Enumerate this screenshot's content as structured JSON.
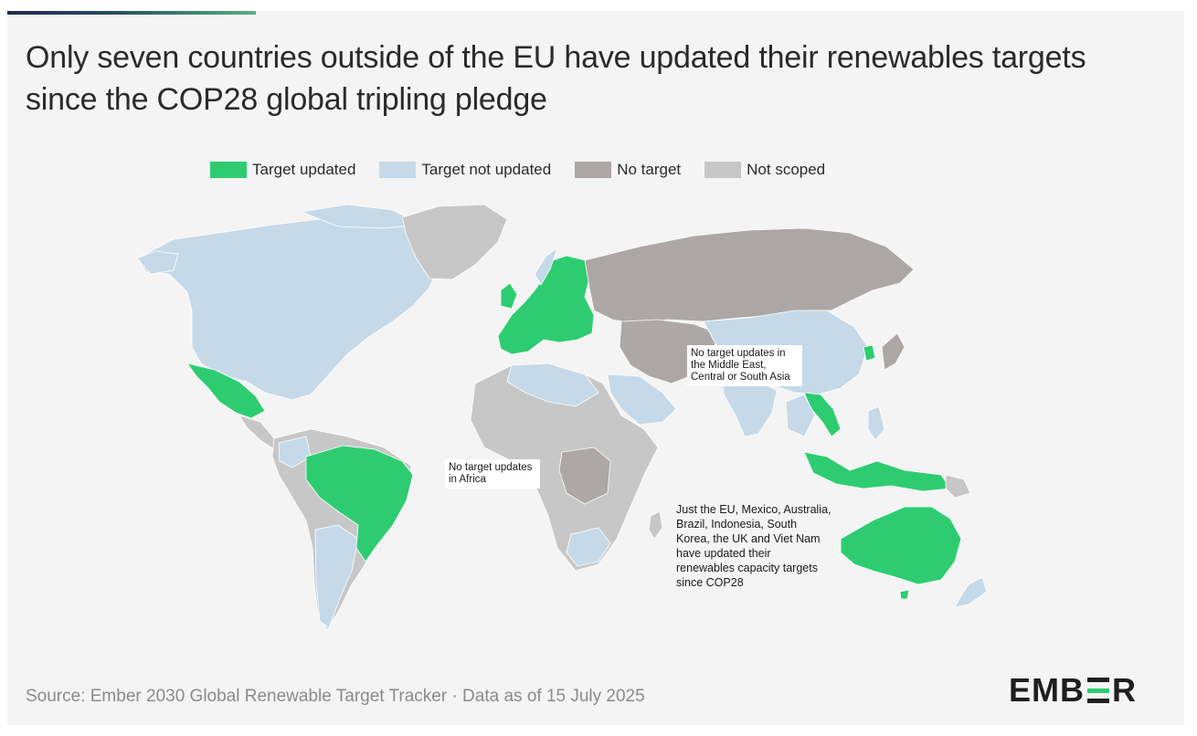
{
  "title": "Only seven countries outside of the EU have updated their renewables targets since the COP28 global tripling pledge",
  "legend": [
    {
      "label": "Target updated",
      "color": "#2ecc71"
    },
    {
      "label": "Target not updated",
      "color": "#c6d9e8"
    },
    {
      "label": "No target",
      "color": "#ada7a5"
    },
    {
      "label": "Not scoped",
      "color": "#c7c7c7"
    }
  ],
  "colors": {
    "updated": "#2ecc71",
    "not_updated": "#c6d9e8",
    "no_target": "#ada7a5",
    "not_scoped": "#c7c7c7",
    "background": "#f4f4f4"
  },
  "regions": {
    "target_updated": [
      "EU",
      "UK",
      "Mexico",
      "Brazil",
      "Indonesia",
      "Australia",
      "South Korea",
      "Viet Nam"
    ],
    "no_target": [
      "Russia",
      "Iran",
      "Middle East",
      "Central Asia",
      "Central Africa"
    ],
    "not_scoped": [
      "Greenland",
      "Africa"
    ]
  },
  "annotations": {
    "middle_east": "No target updates in the Middle East, Central or South Asia",
    "africa": "No target updates in Africa",
    "summary": "Just the EU, Mexico, Australia, Brazil, Indonesia, South Korea, the UK and Viet Nam have updated their renewables capacity targets since COP28"
  },
  "source": "Source: Ember 2030 Global Renewable Target Tracker · Data as of 15 July 2025",
  "logo": {
    "text": "EMBER",
    "accent_color": "#2ecc71"
  }
}
